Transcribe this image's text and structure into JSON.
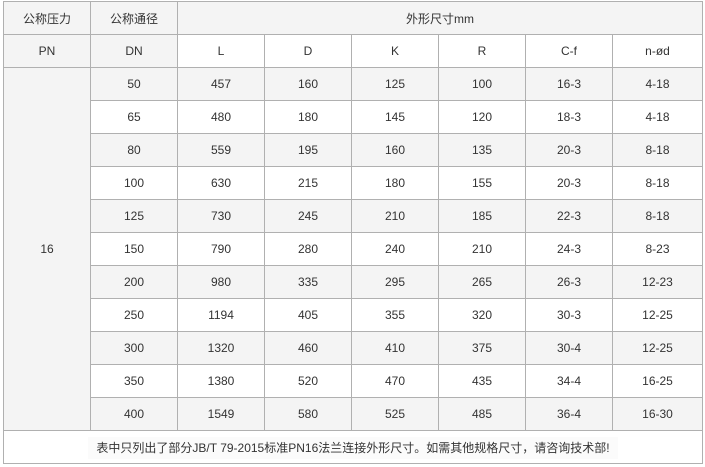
{
  "header": {
    "pn_label_cn": "公称压力",
    "pn_label": "PN",
    "dn_label_cn": "公称通径",
    "dn_label": "DN",
    "dims_group": "外形尺寸mm",
    "columns": [
      "L",
      "D",
      "K",
      "R",
      "C-f",
      "n-ød"
    ]
  },
  "pn_value": "16",
  "rows": [
    [
      "50",
      "457",
      "160",
      "125",
      "100",
      "16-3",
      "4-18"
    ],
    [
      "65",
      "480",
      "180",
      "145",
      "120",
      "18-3",
      "4-18"
    ],
    [
      "80",
      "559",
      "195",
      "160",
      "135",
      "20-3",
      "8-18"
    ],
    [
      "100",
      "630",
      "215",
      "180",
      "155",
      "20-3",
      "8-18"
    ],
    [
      "125",
      "730",
      "245",
      "210",
      "185",
      "22-3",
      "8-18"
    ],
    [
      "150",
      "790",
      "280",
      "240",
      "210",
      "24-3",
      "8-23"
    ],
    [
      "200",
      "980",
      "335",
      "295",
      "265",
      "26-3",
      "12-23"
    ],
    [
      "250",
      "1194",
      "405",
      "355",
      "320",
      "30-3",
      "12-25"
    ],
    [
      "300",
      "1320",
      "460",
      "410",
      "375",
      "30-4",
      "12-25"
    ],
    [
      "350",
      "1380",
      "520",
      "470",
      "435",
      "34-4",
      "16-25"
    ],
    [
      "400",
      "1549",
      "580",
      "525",
      "485",
      "36-4",
      "16-30"
    ]
  ],
  "footnote": "表中只列出了部分JB/T 79-2015标准PN16法兰连接外形尺寸。如需其他规格尺寸，请咨询技术部!"
}
